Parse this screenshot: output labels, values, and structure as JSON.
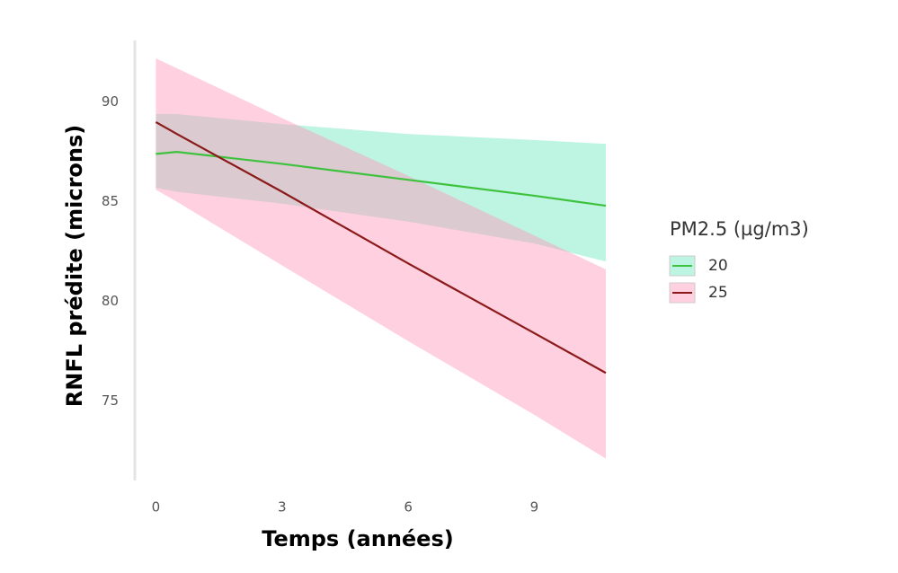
{
  "chart_data": {
    "type": "line",
    "x_label": "Temps (années)",
    "y_label": "RNFL prédite (microns)",
    "legend_title": "PM2.5 (µg/m3)",
    "legend_position": "right",
    "x": [
      0,
      0.5,
      3,
      6,
      9,
      10.7
    ],
    "series": [
      {
        "name": "20",
        "color": "#3ec23e",
        "fill": "rgba(110,230,190,0.45)",
        "values": [
          87.4,
          87.5,
          86.9,
          86.1,
          85.3,
          84.8
        ],
        "lower": [
          85.7,
          85.5,
          84.9,
          84.0,
          82.9,
          82.0
        ],
        "upper": [
          89.4,
          89.4,
          88.9,
          88.4,
          88.1,
          87.9
        ]
      },
      {
        "name": "25",
        "color": "#8b1a1a",
        "fill": "rgba(255,150,185,0.45)",
        "values": [
          89.0,
          88.4,
          85.5,
          81.9,
          78.4,
          76.4
        ],
        "lower": [
          85.6,
          85.0,
          81.8,
          78.0,
          74.3,
          72.1
        ],
        "upper": [
          92.2,
          91.7,
          89.2,
          86.3,
          83.3,
          81.6
        ]
      }
    ],
    "xlim": [
      -0.5,
      11.0
    ],
    "ylim": [
      71,
      93.1
    ],
    "xticks": [
      0,
      3,
      6,
      9
    ],
    "yticks": [
      75,
      80,
      85,
      90
    ],
    "grid": false
  }
}
